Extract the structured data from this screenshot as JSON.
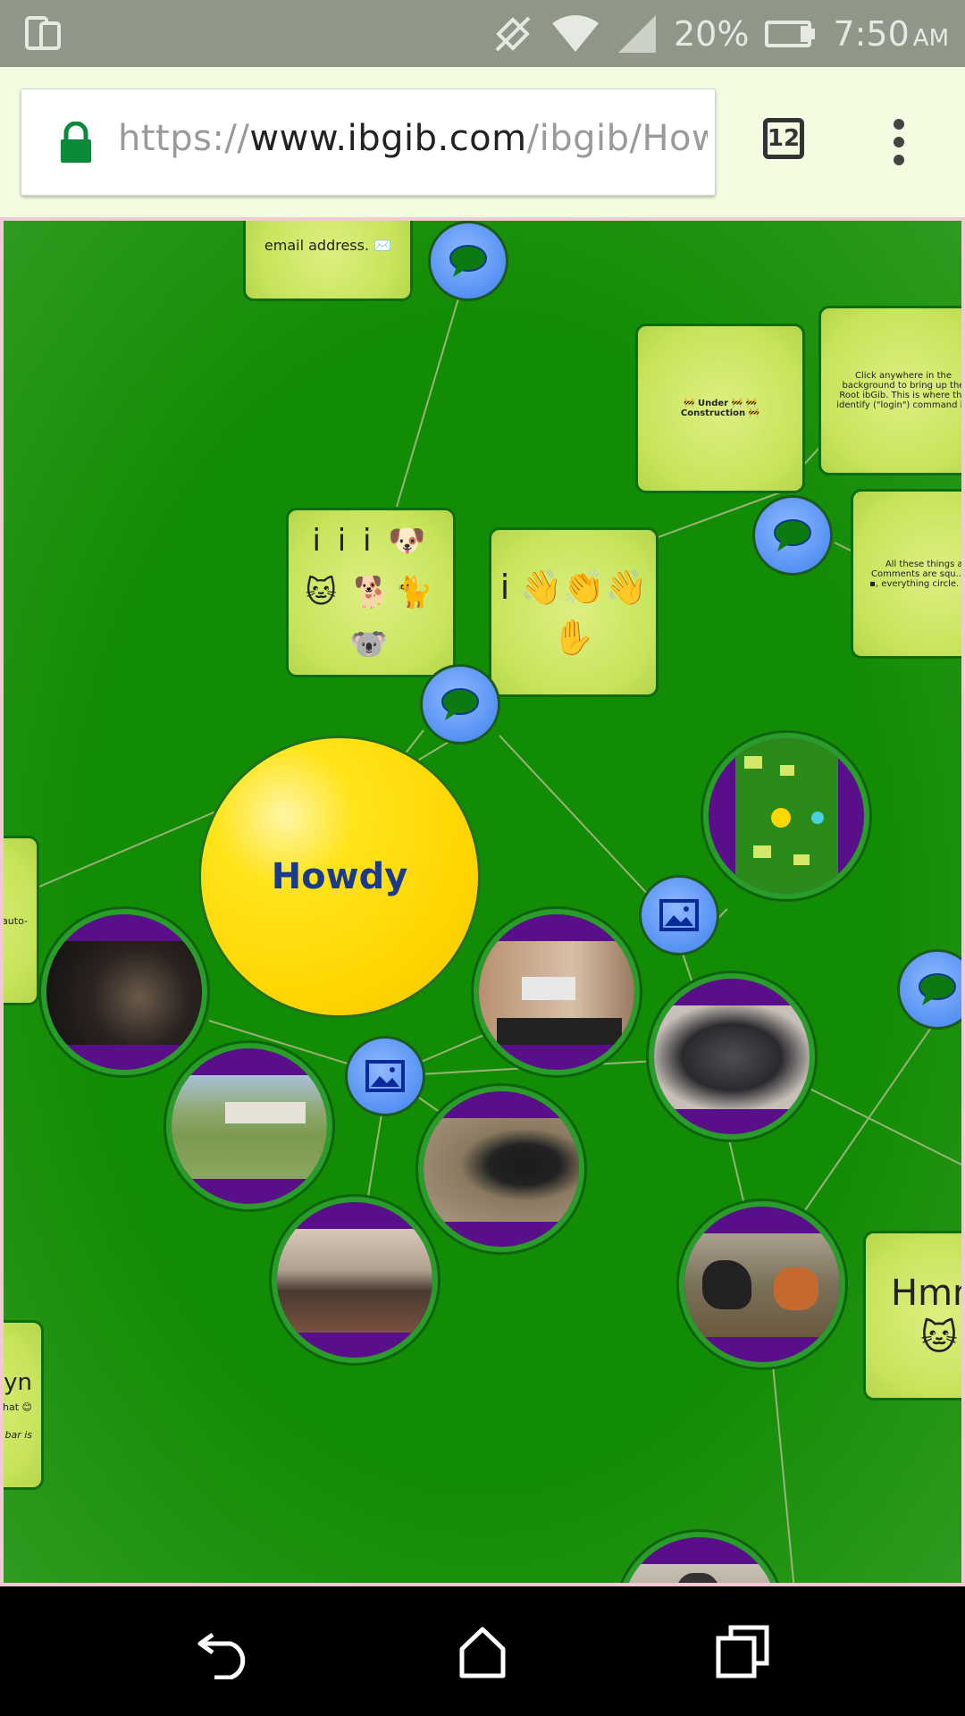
{
  "status_bar": {
    "battery": "20%",
    "time": "7:50",
    "ampm": "AM",
    "icons": [
      "device-icon",
      "sync-off-icon",
      "wifi-icon",
      "signal-icon",
      "battery-icon"
    ]
  },
  "browser": {
    "url_scheme": "https://",
    "url_host": "www.ibgib.com",
    "url_path": "/ibgib/Howd",
    "tab_count": "12"
  },
  "canvas": {
    "root_label": "Howdy",
    "cards": {
      "email": "email address. ✉️",
      "under_construction": "🚧 Under 🚧 🚧 Construction 🚧",
      "click_anywhere": "Click anywhere in the background to bring up the Root ibGib. This is where the identify (\"login\") command is.",
      "things": "All these things are i... Comments are squ... ▪ ▪ ▪ ▪ ▪, everything circle. ● ● ● ●",
      "animals": "i i i 🐶🐱 🐕🐈🐨",
      "hands": "i 👋👏👋 ✋",
      "hmm": "Hmm 🐱",
      "left_auto": "🐭 auto-",
      "left_yn": "yn",
      "left_yn_text": "d in ow what 😊",
      "left_yn_italic": "bar is"
    },
    "accent_colors": {
      "background": "#138c05",
      "card": "#cde566",
      "bubble": "#5b95f5",
      "root": "#ffd800",
      "photo_ring": "#5a0f8a"
    }
  }
}
